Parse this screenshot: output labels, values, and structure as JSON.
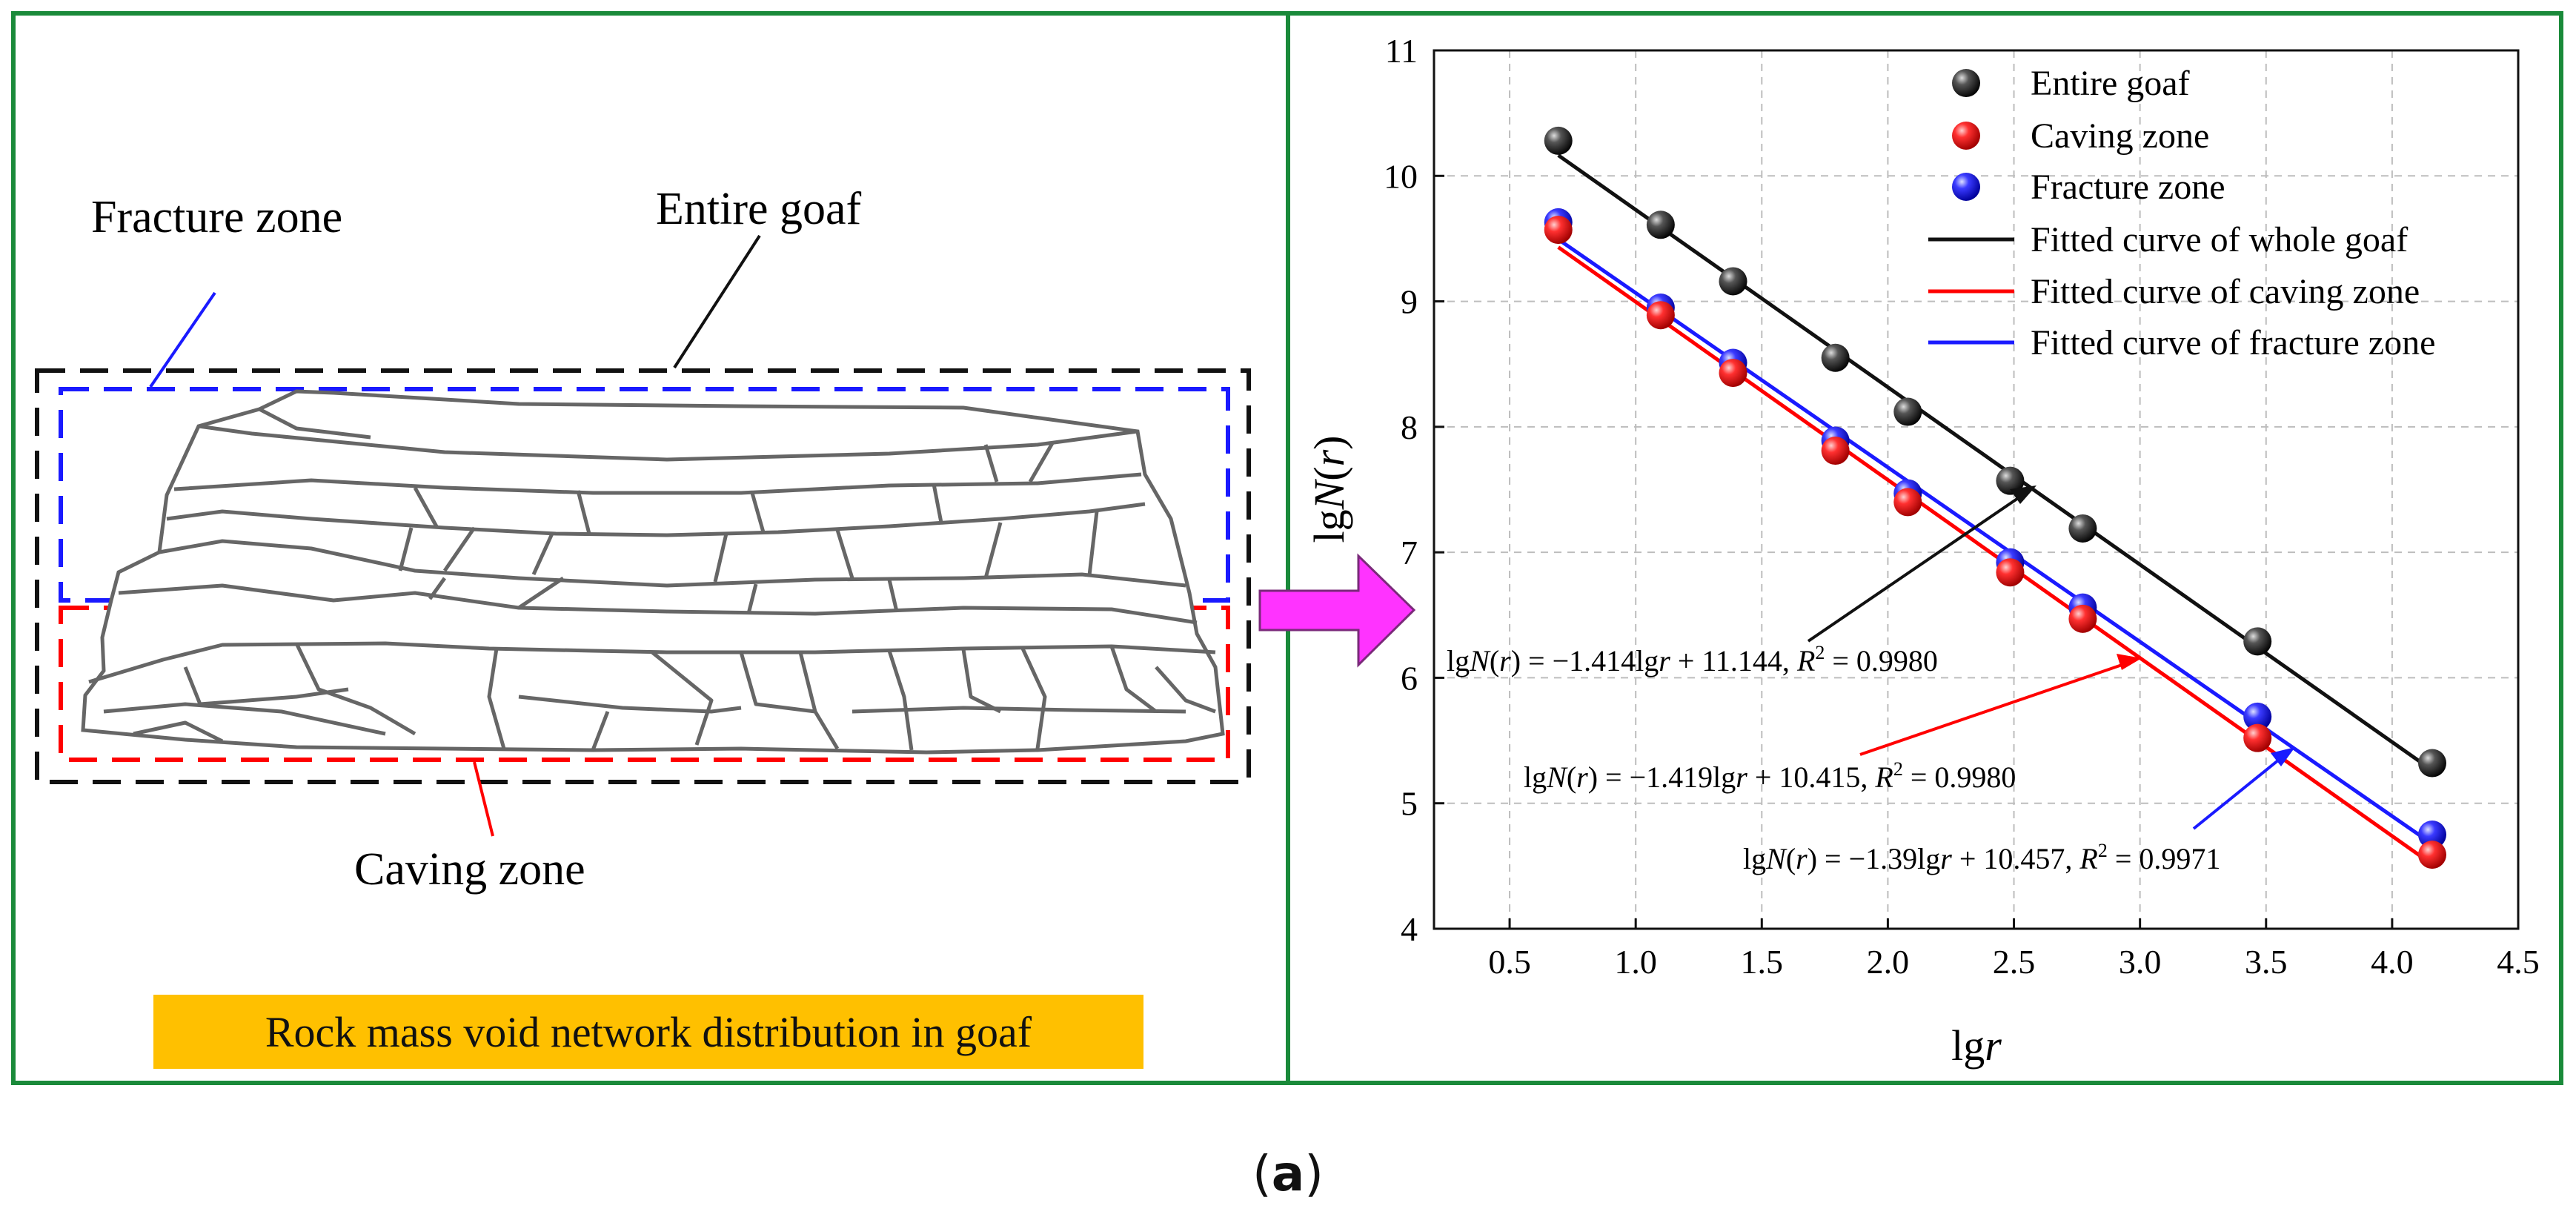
{
  "left_panel": {
    "labels": {
      "fracture_zone": "Fracture zone",
      "entire_goaf": "Entire goaf",
      "caving_zone": "Caving zone"
    },
    "caption": "Rock mass void network distribution in goaf"
  },
  "figure_label": {
    "open": "(",
    "letter": "a",
    "close": ")"
  },
  "colors": {
    "panel_border": "#1a8a3a",
    "arrow": "#ff33ff",
    "entire": "#111111",
    "caving": "#ff0000",
    "fracture": "#1a1aff",
    "badge": "#ffc000"
  },
  "chart_data": {
    "type": "scatter",
    "xlabel": "lgr",
    "ylabel": "lgN(r)",
    "xlim": [
      0.2,
      4.5
    ],
    "ylim": [
      4,
      11
    ],
    "xticks": [
      "0.5",
      "1.0",
      "1.5",
      "2.0",
      "2.5",
      "3.0",
      "3.5",
      "4.0",
      "4.5"
    ],
    "yticks": [
      "4",
      "5",
      "6",
      "7",
      "8",
      "9",
      "10",
      "11"
    ],
    "grid": true,
    "legend_position": "top-right",
    "legend": [
      "Entire goaf",
      "Caving zone",
      "Fracture zone",
      "Fitted curve of whole goaf",
      "Fitted curve of caving zone",
      "Fitted curve of fracture zone"
    ],
    "series": [
      {
        "name": "Entire goaf",
        "color": "#111111",
        "x": [
          0.693,
          1.099,
          1.386,
          1.792,
          2.079,
          2.485,
          2.773,
          3.466,
          4.159
        ],
        "y": [
          10.28,
          9.61,
          9.16,
          8.55,
          8.12,
          7.57,
          7.19,
          6.29,
          5.32
        ]
      },
      {
        "name": "Caving zone",
        "color": "#ff0000",
        "x": [
          0.693,
          1.099,
          1.386,
          1.792,
          2.079,
          2.485,
          2.773,
          3.466,
          4.159
        ],
        "y": [
          9.57,
          8.89,
          8.43,
          7.81,
          7.4,
          6.84,
          6.47,
          5.52,
          4.59
        ]
      },
      {
        "name": "Fracture zone",
        "color": "#1a1aff",
        "x": [
          0.693,
          1.099,
          1.386,
          1.792,
          2.079,
          2.485,
          2.773,
          3.466,
          4.159
        ],
        "y": [
          9.63,
          8.95,
          8.51,
          7.89,
          7.47,
          6.92,
          6.56,
          5.69,
          4.75
        ]
      }
    ],
    "fits": [
      {
        "name": "Fitted curve of whole goaf",
        "color": "#111111",
        "slope": -1.414,
        "intercept": 11.144
      },
      {
        "name": "Fitted curve of caving zone",
        "color": "#ff0000",
        "slope": -1.419,
        "intercept": 10.415
      },
      {
        "name": "Fitted curve of fracture zone",
        "color": "#1a1aff",
        "slope": -1.39,
        "intercept": 10.457
      }
    ],
    "annotations": [
      {
        "pre": "lg",
        "N": "N",
        "mid": "(",
        "r": "r",
        "eq": ") = −1.414lg",
        "r2": "r",
        "tail": " + 11.144, ",
        "R": "R",
        "sup": "2",
        "end": " = 0.9980"
      },
      {
        "pre": "lg",
        "N": "N",
        "mid": "(",
        "r": "r",
        "eq": ") = −1.419lg",
        "r2": "r",
        "tail": " + 10.415, ",
        "R": "R",
        "sup": "2",
        "end": " = 0.9980"
      },
      {
        "pre": "lg",
        "N": "N",
        "mid": "(",
        "r": "r",
        "eq": ") = −1.39lg",
        "r2": "r",
        "tail": " + 10.457, ",
        "R": "R",
        "sup": "2",
        "end": " = 0.9971"
      }
    ]
  }
}
